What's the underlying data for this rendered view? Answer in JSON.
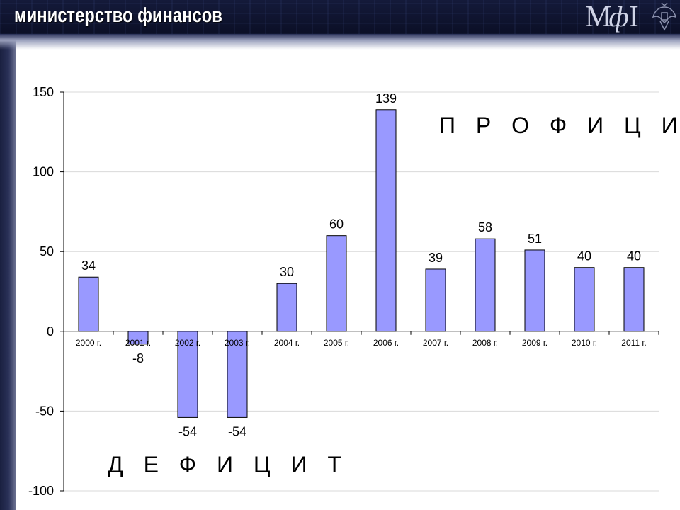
{
  "header": {
    "title": "министерство финансов",
    "logo_text_m": "М",
    "logo_text_f": "ф",
    "logo_text_i": "I",
    "emblem_icon": "double-headed-eagle-icon"
  },
  "colors": {
    "header_bg": "#0b0f26",
    "bar_fill": "#9999ff",
    "bar_stroke": "#000000",
    "grid": "#d9d9d9"
  },
  "chart_data": {
    "type": "bar",
    "categories": [
      "2000 г.",
      "2001 г.",
      "2002 г.",
      "2003 г.",
      "2004 г.",
      "2005 г.",
      "2006 г.",
      "2007 г.",
      "2008 г.",
      "2009 г.",
      "2010 г.",
      "2011 г."
    ],
    "values": [
      34,
      -8,
      -54,
      -54,
      30,
      60,
      139,
      39,
      58,
      51,
      40,
      40
    ],
    "data_labels": [
      "34",
      "-8",
      "-54",
      "-54",
      "30",
      "60",
      "139",
      "39",
      "58",
      "51",
      "40",
      "40"
    ],
    "y_ticks": [
      150,
      100,
      50,
      0,
      -50,
      -100
    ],
    "ylim": [
      -100,
      150
    ],
    "grid": true,
    "annotations": {
      "profit": "П Р О Ф И Ц И Т",
      "deficit": "Д Е Ф И Ц И Т"
    }
  }
}
